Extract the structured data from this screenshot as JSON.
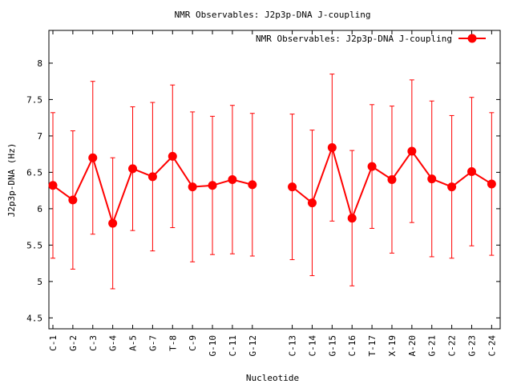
{
  "chart_data": {
    "type": "line",
    "title": "NMR Observables: J2p3p-DNA J-coupling",
    "xlabel": "Nucleotide",
    "ylabel": "J2p3p-DNA (Hz)",
    "ylim": [
      4.35,
      8.45
    ],
    "yticks": [
      "4.5",
      "5",
      "5.5",
      "6",
      "6.5",
      "7",
      "7.5",
      "8"
    ],
    "ytick_values": [
      4.5,
      5,
      5.5,
      6,
      6.5,
      7,
      7.5,
      8
    ],
    "grid": false,
    "legend_position": "top-right",
    "series_color": "#ff0000",
    "categories": [
      "C-1",
      "G-2",
      "C-3",
      "G-4",
      "A-5",
      "G-7",
      "T-8",
      "C-9",
      "G-10",
      "C-11",
      "G-12",
      "",
      "C-13",
      "C-14",
      "G-15",
      "C-16",
      "T-17",
      "X-19",
      "A-20",
      "G-21",
      "C-22",
      "G-23",
      "C-24"
    ],
    "series": [
      {
        "name": "NMR Observables: J2p3p-DNA J-coupling",
        "values": [
          6.32,
          6.12,
          6.7,
          5.8,
          6.55,
          6.44,
          6.72,
          6.3,
          6.32,
          6.4,
          6.33,
          null,
          6.3,
          6.08,
          6.84,
          5.87,
          6.58,
          6.4,
          6.79,
          6.41,
          6.3,
          6.51,
          6.34
        ],
        "error": [
          1.0,
          0.95,
          1.05,
          0.9,
          0.85,
          1.02,
          0.98,
          1.03,
          0.95,
          1.02,
          0.98,
          null,
          1.0,
          1.0,
          1.01,
          0.93,
          0.85,
          1.01,
          0.98,
          1.07,
          0.98,
          1.02,
          0.98
        ]
      }
    ]
  }
}
